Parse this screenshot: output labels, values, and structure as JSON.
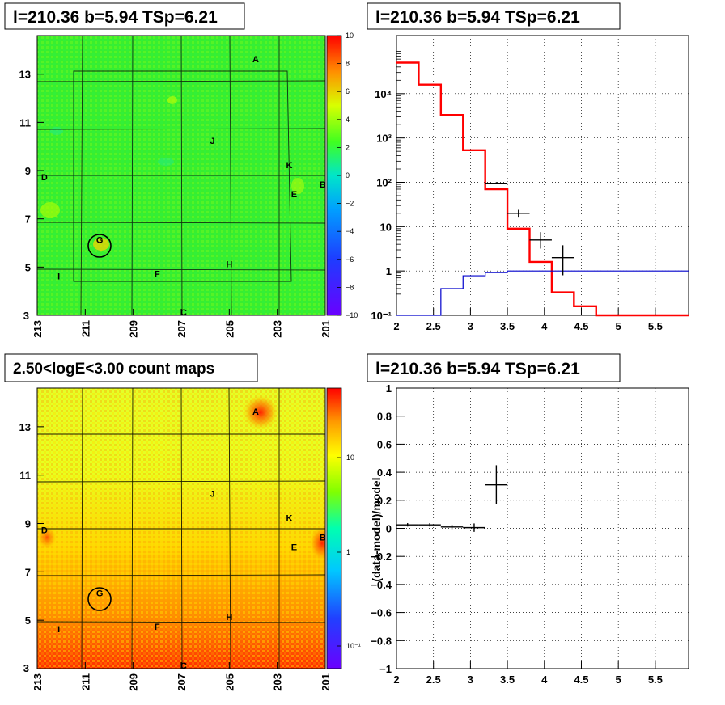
{
  "chart_data": [
    {
      "type": "heatmap",
      "title": "l=210.36 b=5.94 TSp=6.21",
      "x_ticks": [
        "213",
        "211",
        "209",
        "207",
        "205",
        "203",
        "201"
      ],
      "y_ticks": [
        "5",
        "7",
        "9",
        "11",
        "13"
      ],
      "y_corner_label": "3",
      "xlim": [
        213,
        201
      ],
      "ylim": [
        3,
        14.6
      ],
      "color_scale": {
        "min": -10,
        "max": 10,
        "ticks": [
          "10",
          "8",
          "6",
          "4",
          "2",
          "0",
          "−2",
          "−4",
          "−6",
          "−8",
          "−10"
        ]
      },
      "sources": [
        {
          "label": "A",
          "x": 203.9,
          "y": 13.5
        },
        {
          "label": "B",
          "x": 201.1,
          "y": 8.3
        },
        {
          "label": "C",
          "x": 206.9,
          "y": 3.0
        },
        {
          "label": "D",
          "x": 212.7,
          "y": 8.6
        },
        {
          "label": "E",
          "x": 202.3,
          "y": 7.9
        },
        {
          "label": "F",
          "x": 208.0,
          "y": 4.6
        },
        {
          "label": "G",
          "x": 210.4,
          "y": 6.0
        },
        {
          "label": "H",
          "x": 205.0,
          "y": 5.0
        },
        {
          "label": "I",
          "x": 212.1,
          "y": 4.5
        },
        {
          "label": "J",
          "x": 205.7,
          "y": 10.1
        },
        {
          "label": "K",
          "x": 202.5,
          "y": 9.1
        }
      ]
    },
    {
      "type": "line",
      "title": "l=210.36 b=5.94 TSp=6.21",
      "x_ticks": [
        "2",
        "2.5",
        "3",
        "3.5",
        "4",
        "4.5",
        "5",
        "5.5"
      ],
      "y_ticks": [
        "10⁻¹",
        "1",
        "10",
        "10²",
        "10³",
        "10⁴"
      ],
      "xlim": [
        2,
        5.95
      ],
      "ylim": [
        0.1,
        100000
      ],
      "y_scale": "log",
      "series": [
        {
          "color": "#ff0000",
          "steps": [
            [
              2.0,
              2.3,
              50000
            ],
            [
              2.3,
              2.6,
              16000
            ],
            [
              2.6,
              2.9,
              3300
            ],
            [
              2.9,
              3.2,
              530
            ],
            [
              3.2,
              3.5,
              70
            ],
            [
              3.5,
              3.8,
              9
            ],
            [
              3.8,
              4.1,
              1.6
            ],
            [
              4.1,
              4.4,
              0.33
            ],
            [
              4.4,
              4.7,
              0.16
            ],
            [
              4.7,
              5.95,
              0.1
            ]
          ]
        },
        {
          "color": "#0000cc",
          "steps": [
            [
              2.0,
              2.3,
              0.1
            ],
            [
              2.3,
              2.6,
              0.1
            ],
            [
              2.6,
              2.9,
              0.4
            ],
            [
              2.9,
              3.2,
              0.78
            ],
            [
              3.2,
              3.5,
              0.92
            ],
            [
              3.5,
              5.95,
              1.0
            ]
          ]
        }
      ],
      "points": [
        {
          "x": 3.35,
          "y": 95,
          "xerr": 0.15,
          "ylo": 90,
          "yhi": 101
        },
        {
          "x": 3.65,
          "y": 20,
          "xerr": 0.15,
          "ylo": 16,
          "yhi": 24
        },
        {
          "x": 3.95,
          "y": 5,
          "xerr": 0.15,
          "ylo": 3.2,
          "yhi": 7.5
        },
        {
          "x": 4.25,
          "y": 2,
          "xerr": 0.15,
          "ylo": 0.8,
          "yhi": 3.8
        }
      ]
    },
    {
      "type": "heatmap",
      "title": "2.50<logE<3.00 count maps",
      "x_ticks": [
        "213",
        "211",
        "209",
        "207",
        "205",
        "203",
        "201"
      ],
      "y_ticks": [
        "5",
        "7",
        "9",
        "11",
        "13"
      ],
      "y_corner_label": "3",
      "xlim": [
        213,
        201
      ],
      "ylim": [
        3,
        14.6
      ],
      "color_scale": {
        "scale": "log",
        "ticks": [
          "10",
          "1",
          "10⁻¹"
        ]
      },
      "sources": [
        {
          "label": "A",
          "x": 203.9,
          "y": 13.5
        },
        {
          "label": "B",
          "x": 201.1,
          "y": 8.3
        },
        {
          "label": "C",
          "x": 206.9,
          "y": 3.0
        },
        {
          "label": "D",
          "x": 212.7,
          "y": 8.6
        },
        {
          "label": "E",
          "x": 202.3,
          "y": 7.9
        },
        {
          "label": "F",
          "x": 208.0,
          "y": 4.6
        },
        {
          "label": "G",
          "x": 210.4,
          "y": 6.0
        },
        {
          "label": "H",
          "x": 205.0,
          "y": 5.0
        },
        {
          "label": "I",
          "x": 212.1,
          "y": 4.5
        },
        {
          "label": "J",
          "x": 205.7,
          "y": 10.1
        },
        {
          "label": "K",
          "x": 202.5,
          "y": 9.1
        }
      ]
    },
    {
      "type": "scatter",
      "title": "l=210.36 b=5.94 TSp=6.21",
      "ylabel": "(data-model)/model",
      "x_ticks": [
        "2",
        "2.5",
        "3",
        "3.5",
        "4",
        "4.5",
        "5",
        "5.5"
      ],
      "y_ticks": [
        "−1",
        "−0.8",
        "−0.6",
        "−0.4",
        "−0.2",
        "0",
        "0.2",
        "0.4",
        "0.6",
        "0.8",
        "1"
      ],
      "xlim": [
        2,
        5.95
      ],
      "ylim": [
        -1,
        1
      ],
      "points": [
        {
          "x": 2.15,
          "y": 0.025,
          "xerr": 0.15,
          "yerr": 0.012
        },
        {
          "x": 2.45,
          "y": 0.025,
          "xerr": 0.15,
          "yerr": 0.012
        },
        {
          "x": 2.75,
          "y": 0.01,
          "xerr": 0.15,
          "yerr": 0.015
        },
        {
          "x": 3.05,
          "y": 0.005,
          "xerr": 0.15,
          "yerr": 0.03
        },
        {
          "x": 3.35,
          "y": 0.31,
          "xerr": 0.15,
          "yerr": 0.14
        }
      ]
    }
  ]
}
